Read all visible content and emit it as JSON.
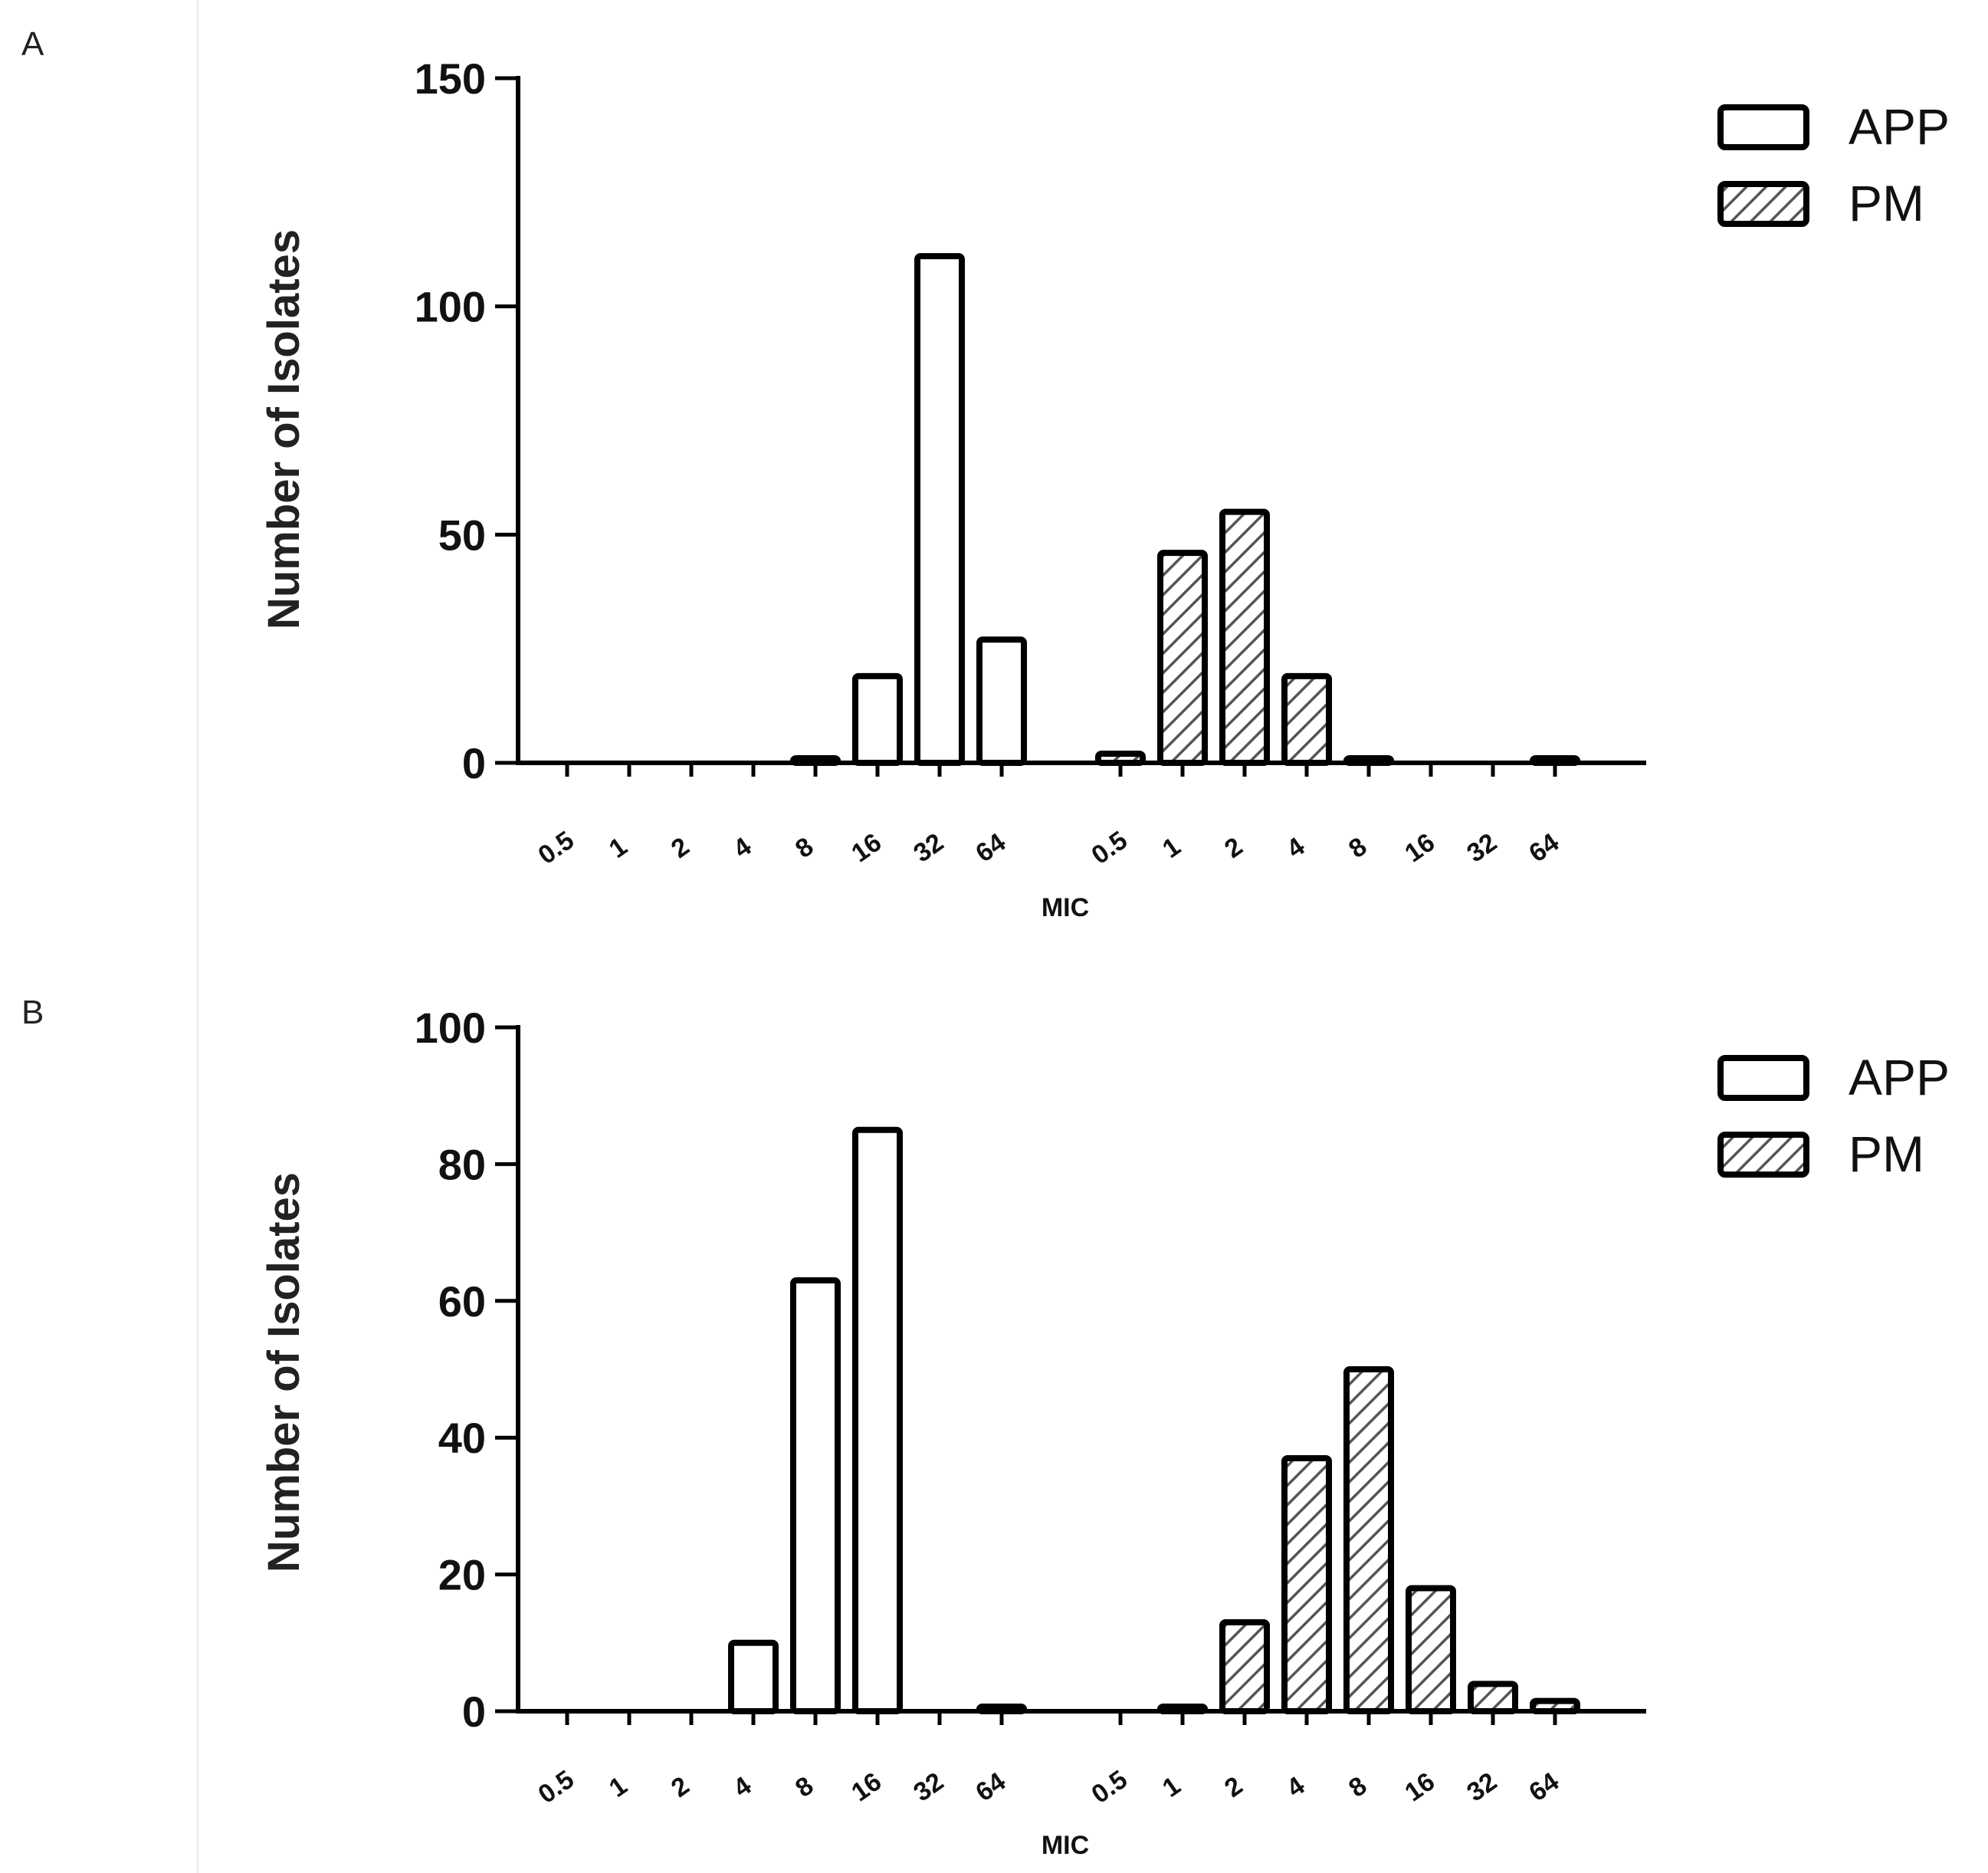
{
  "chart_data": [
    {
      "type": "bar",
      "panel": "A",
      "ylabel": "Number of Isolates",
      "xlabel": "MIC",
      "ylim": [
        0,
        150
      ],
      "yticks": [
        0,
        50,
        100,
        150
      ],
      "groups": [
        {
          "name": "APP",
          "categories": [
            "0.5",
            "1",
            "2",
            "4",
            "8",
            "16",
            "32",
            "64"
          ],
          "values": [
            0,
            0,
            0,
            0,
            1,
            19,
            111,
            27
          ]
        },
        {
          "name": "PM",
          "categories": [
            "0.5",
            "1",
            "2",
            "4",
            "8",
            "16",
            "32",
            "64"
          ],
          "values": [
            2,
            46,
            55,
            19,
            1,
            0,
            0,
            0.5
          ]
        }
      ],
      "legend": [
        {
          "label": "APP",
          "style": "open"
        },
        {
          "label": "PM",
          "style": "hatched"
        }
      ],
      "legend_position": "top-right"
    },
    {
      "type": "bar",
      "panel": "B",
      "ylabel": "Number of Isolates",
      "xlabel": "MIC",
      "ylim": [
        0,
        100
      ],
      "yticks": [
        0,
        20,
        40,
        60,
        80,
        100
      ],
      "groups": [
        {
          "name": "APP",
          "categories": [
            "0.5",
            "1",
            "2",
            "4",
            "8",
            "16",
            "32",
            "64"
          ],
          "values": [
            0,
            0,
            0,
            10,
            63,
            85,
            0,
            0.3
          ]
        },
        {
          "name": "PM",
          "categories": [
            "0.5",
            "1",
            "2",
            "4",
            "8",
            "16",
            "32",
            "64"
          ],
          "values": [
            0,
            0.3,
            13,
            37,
            50,
            18,
            4,
            1.5
          ]
        }
      ],
      "legend": [
        {
          "label": "APP",
          "style": "open"
        },
        {
          "label": "PM",
          "style": "hatched"
        }
      ],
      "legend_position": "top-right"
    }
  ]
}
